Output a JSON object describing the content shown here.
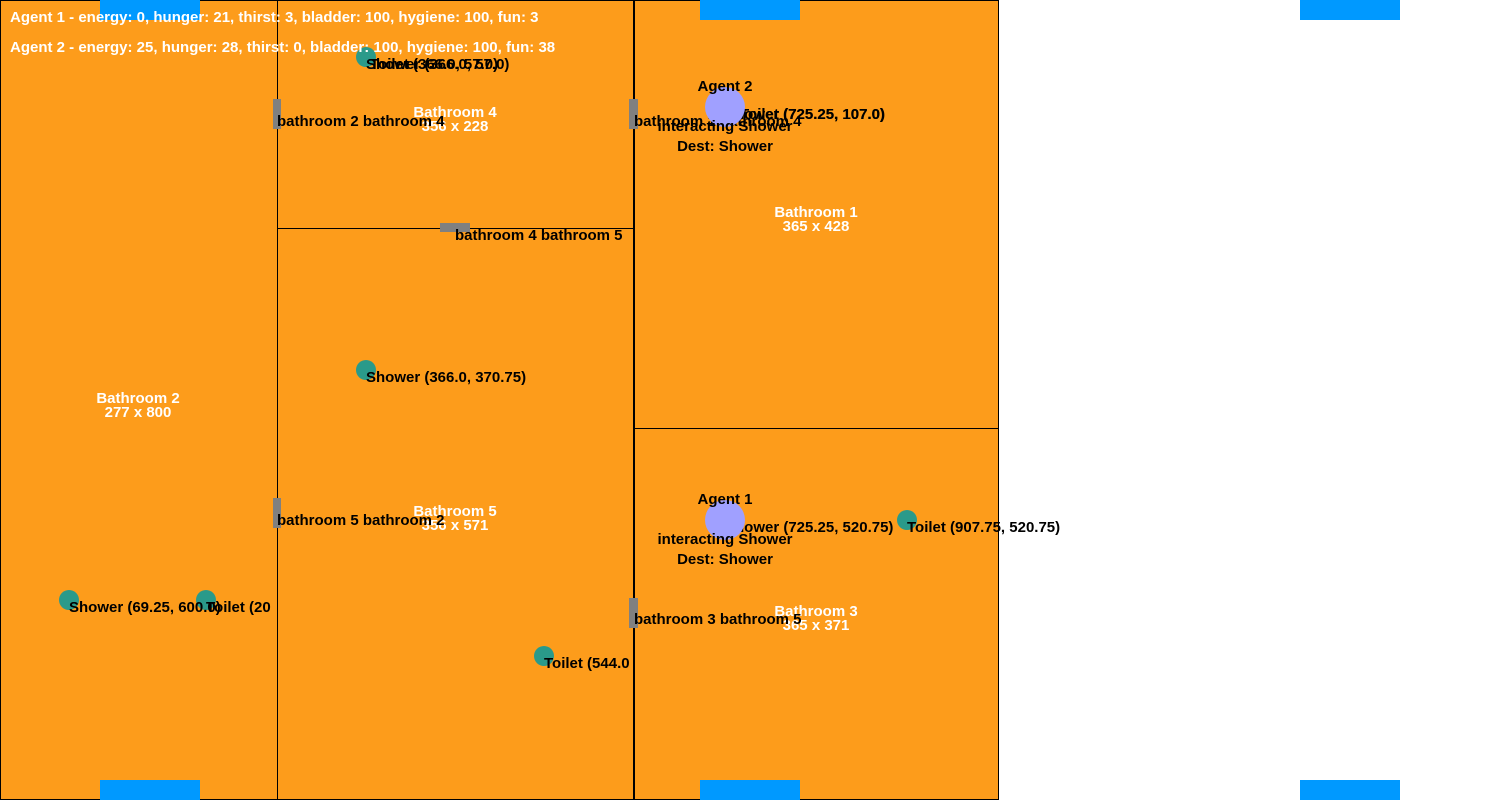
{
  "colors": {
    "room": "#fd9c1b",
    "door": "#808080",
    "object": "#2a9a8a",
    "agent": "#a0a0ff",
    "spawn": "#0099ff"
  },
  "hud": {
    "agent1": "Agent 1 - energy: 0, hunger: 21, thirst: 3, bladder: 100, hygiene: 100, fun: 3",
    "agent2": "Agent 2 - energy: 25, hunger: 28, thirst: 0, bladder: 100, hygiene: 100, fun: 38"
  },
  "rooms": {
    "bathroom2": {
      "name": "Bathroom 2",
      "size": "277 x 800"
    },
    "bathroom4": {
      "name": "Bathroom 4",
      "size": "356 x 228"
    },
    "bathroom5": {
      "name": "Bathroom 5",
      "size": "356 x 571"
    },
    "bathroom1": {
      "name": "Bathroom 1",
      "size": "365 x 428"
    },
    "bathroom3": {
      "name": "Bathroom 3",
      "size": "365 x 371"
    }
  },
  "doors": {
    "d24": "bathroom 2 bathroom 4",
    "d45": "bathroom 4 bathroom 5",
    "d52": "bathroom 5 bathroom 2",
    "d14": "bathroom 1 bathroom 4",
    "d35": "bathroom 3 bathroom 5"
  },
  "objects": {
    "b4_shower": "Shower (366.0, 57.0)",
    "b4_toilet": "Toilet (366.0, 57.0)",
    "b5_shower": "Shower (366.0, 370.75)",
    "b5_toilet": "Toilet (544.0",
    "b2_shower": "Shower (69.25, 600.0)",
    "b2_toilet": "Toilet (20",
    "b1_shower": "Shower (725.25, 107.0)",
    "b1_toilet": "Toilet (725.25, 107.0)",
    "b3_shower": "Shower (725.25, 520.75)",
    "b3_toilet": "Toilet (907.75, 520.75)"
  },
  "agents": {
    "agent1": {
      "name": "Agent 1",
      "status": "interacting Shower",
      "dest": "Dest: Shower"
    },
    "agent2": {
      "name": "Agent 2",
      "status": "interacting Shower",
      "dest": "Dest: Shower"
    }
  }
}
